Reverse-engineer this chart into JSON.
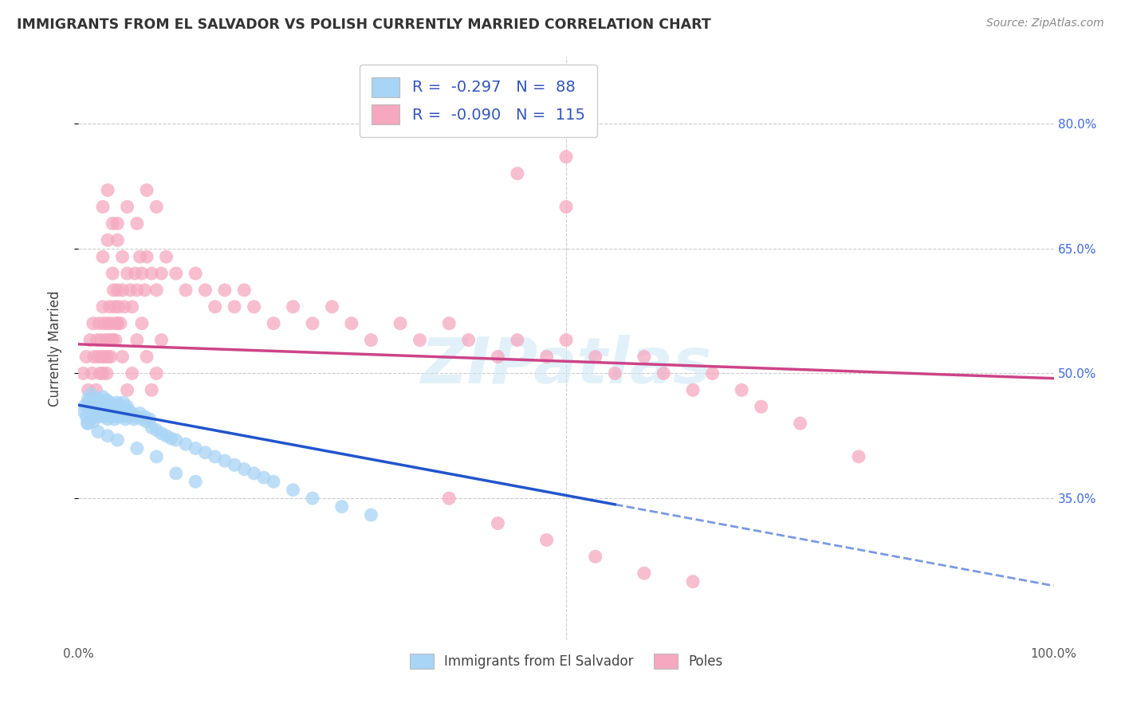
{
  "title": "IMMIGRANTS FROM EL SALVADOR VS POLISH CURRENTLY MARRIED CORRELATION CHART",
  "source": "Source: ZipAtlas.com",
  "ylabel": "Currently Married",
  "x_min": 0.0,
  "x_max": 1.0,
  "y_min": 0.18,
  "y_max": 0.88,
  "x_ticks": [
    0.0,
    0.5,
    1.0
  ],
  "x_tick_labels": [
    "0.0%",
    "",
    "100.0%"
  ],
  "y_ticks": [
    0.35,
    0.5,
    0.65,
    0.8
  ],
  "y_tick_labels": [
    "35.0%",
    "50.0%",
    "65.0%",
    "80.0%"
  ],
  "legend_r_blue": "-0.297",
  "legend_n_blue": "88",
  "legend_r_pink": "-0.090",
  "legend_n_pink": "115",
  "blue_color": "#a8d4f5",
  "pink_color": "#f5a8c0",
  "line_blue_color": "#2255cc",
  "line_pink_color": "#cc4488",
  "watermark": "ZIPatlas",
  "blue_line_x0": 0.0,
  "blue_line_y0": 0.462,
  "blue_line_x1": 1.0,
  "blue_line_y1": 0.245,
  "blue_line_solid_end": 0.55,
  "pink_line_x0": 0.0,
  "pink_line_y0": 0.535,
  "pink_line_x1": 1.0,
  "pink_line_y1": 0.494,
  "blue_scatter_x": [
    0.005,
    0.007,
    0.008,
    0.009,
    0.01,
    0.01,
    0.012,
    0.013,
    0.014,
    0.015,
    0.016,
    0.017,
    0.018,
    0.019,
    0.02,
    0.02,
    0.021,
    0.022,
    0.022,
    0.023,
    0.024,
    0.025,
    0.026,
    0.027,
    0.028,
    0.028,
    0.029,
    0.03,
    0.03,
    0.031,
    0.032,
    0.033,
    0.034,
    0.035,
    0.036,
    0.037,
    0.038,
    0.039,
    0.04,
    0.04,
    0.041,
    0.042,
    0.043,
    0.044,
    0.045,
    0.046,
    0.047,
    0.048,
    0.049,
    0.05,
    0.051,
    0.052,
    0.055,
    0.057,
    0.06,
    0.063,
    0.065,
    0.068,
    0.07,
    0.073,
    0.075,
    0.08,
    0.085,
    0.09,
    0.095,
    0.1,
    0.11,
    0.12,
    0.13,
    0.14,
    0.15,
    0.16,
    0.17,
    0.18,
    0.19,
    0.2,
    0.22,
    0.24,
    0.27,
    0.3,
    0.1,
    0.12,
    0.08,
    0.06,
    0.04,
    0.03,
    0.02,
    0.01
  ],
  "blue_scatter_y": [
    0.455,
    0.462,
    0.448,
    0.44,
    0.465,
    0.47,
    0.458,
    0.475,
    0.45,
    0.442,
    0.468,
    0.455,
    0.448,
    0.462,
    0.47,
    0.458,
    0.465,
    0.455,
    0.448,
    0.462,
    0.458,
    0.472,
    0.465,
    0.455,
    0.448,
    0.461,
    0.468,
    0.452,
    0.445,
    0.458,
    0.465,
    0.455,
    0.448,
    0.462,
    0.458,
    0.445,
    0.452,
    0.465,
    0.458,
    0.448,
    0.455,
    0.462,
    0.452,
    0.448,
    0.458,
    0.465,
    0.455,
    0.445,
    0.452,
    0.46,
    0.448,
    0.455,
    0.452,
    0.445,
    0.448,
    0.452,
    0.445,
    0.448,
    0.442,
    0.445,
    0.435,
    0.432,
    0.428,
    0.425,
    0.422,
    0.42,
    0.415,
    0.41,
    0.405,
    0.4,
    0.395,
    0.39,
    0.385,
    0.38,
    0.375,
    0.37,
    0.36,
    0.35,
    0.34,
    0.33,
    0.38,
    0.37,
    0.4,
    0.41,
    0.42,
    0.425,
    0.43,
    0.44
  ],
  "pink_scatter_x": [
    0.005,
    0.008,
    0.01,
    0.012,
    0.014,
    0.015,
    0.016,
    0.018,
    0.019,
    0.02,
    0.021,
    0.022,
    0.023,
    0.024,
    0.025,
    0.026,
    0.027,
    0.028,
    0.029,
    0.03,
    0.031,
    0.032,
    0.033,
    0.034,
    0.035,
    0.036,
    0.037,
    0.038,
    0.039,
    0.04,
    0.041,
    0.043,
    0.045,
    0.047,
    0.05,
    0.053,
    0.055,
    0.058,
    0.06,
    0.063,
    0.065,
    0.068,
    0.07,
    0.075,
    0.08,
    0.085,
    0.09,
    0.1,
    0.11,
    0.12,
    0.13,
    0.14,
    0.15,
    0.16,
    0.17,
    0.18,
    0.2,
    0.22,
    0.24,
    0.26,
    0.28,
    0.3,
    0.33,
    0.35,
    0.38,
    0.4,
    0.43,
    0.45,
    0.48,
    0.5,
    0.53,
    0.55,
    0.58,
    0.6,
    0.63,
    0.65,
    0.68,
    0.7,
    0.74,
    0.8,
    0.025,
    0.03,
    0.035,
    0.04,
    0.045,
    0.05,
    0.055,
    0.06,
    0.065,
    0.07,
    0.075,
    0.08,
    0.085,
    0.025,
    0.03,
    0.035,
    0.04,
    0.045,
    0.025,
    0.03,
    0.035,
    0.04,
    0.05,
    0.06,
    0.07,
    0.08,
    0.38,
    0.43,
    0.48,
    0.53,
    0.58,
    0.63,
    0.5,
    0.5,
    0.45
  ],
  "pink_scatter_y": [
    0.5,
    0.52,
    0.48,
    0.54,
    0.5,
    0.56,
    0.52,
    0.48,
    0.54,
    0.52,
    0.56,
    0.5,
    0.54,
    0.52,
    0.58,
    0.56,
    0.52,
    0.54,
    0.5,
    0.56,
    0.54,
    0.58,
    0.52,
    0.56,
    0.54,
    0.6,
    0.58,
    0.54,
    0.56,
    0.6,
    0.58,
    0.56,
    0.6,
    0.58,
    0.62,
    0.6,
    0.58,
    0.62,
    0.6,
    0.64,
    0.62,
    0.6,
    0.64,
    0.62,
    0.6,
    0.62,
    0.64,
    0.62,
    0.6,
    0.62,
    0.6,
    0.58,
    0.6,
    0.58,
    0.6,
    0.58,
    0.56,
    0.58,
    0.56,
    0.58,
    0.56,
    0.54,
    0.56,
    0.54,
    0.56,
    0.54,
    0.52,
    0.54,
    0.52,
    0.54,
    0.52,
    0.5,
    0.52,
    0.5,
    0.48,
    0.5,
    0.48,
    0.46,
    0.44,
    0.4,
    0.5,
    0.52,
    0.54,
    0.56,
    0.52,
    0.48,
    0.5,
    0.54,
    0.56,
    0.52,
    0.48,
    0.5,
    0.54,
    0.64,
    0.66,
    0.62,
    0.68,
    0.64,
    0.7,
    0.72,
    0.68,
    0.66,
    0.7,
    0.68,
    0.72,
    0.7,
    0.35,
    0.32,
    0.3,
    0.28,
    0.26,
    0.25,
    0.76,
    0.7,
    0.74
  ]
}
